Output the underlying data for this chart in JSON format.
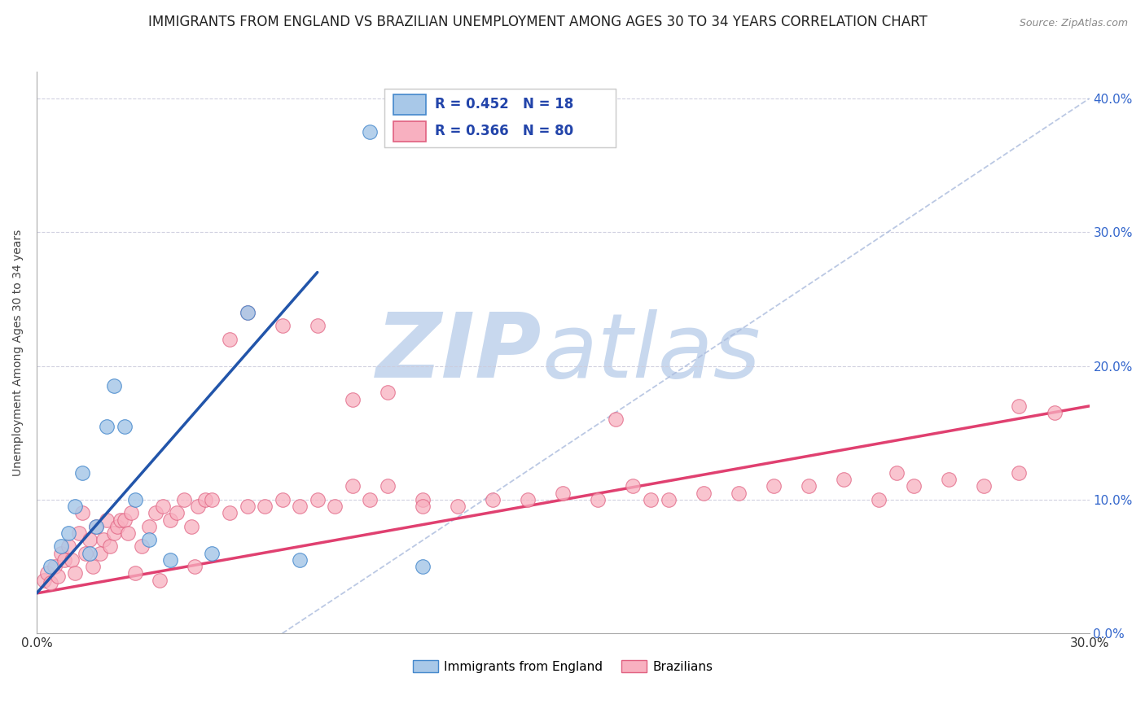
{
  "title": "IMMIGRANTS FROM ENGLAND VS BRAZILIAN UNEMPLOYMENT AMONG AGES 30 TO 34 YEARS CORRELATION CHART",
  "source": "Source: ZipAtlas.com",
  "ylabel": "Unemployment Among Ages 30 to 34 years",
  "xlim": [
    0.0,
    0.3
  ],
  "ylim": [
    0.0,
    0.42
  ],
  "xtick_labels": [
    "0.0%",
    "30.0%"
  ],
  "xtick_vals": [
    0.0,
    0.3
  ],
  "yticks_right": [
    0.0,
    0.1,
    0.2,
    0.3,
    0.4
  ],
  "blue_color": "#a8c8e8",
  "blue_edge_color": "#4488cc",
  "blue_line_color": "#2255aa",
  "pink_color": "#f8b0c0",
  "pink_edge_color": "#e06080",
  "pink_line_color": "#e04070",
  "legend_R_blue": "R = 0.452",
  "legend_N_blue": "N = 18",
  "legend_R_pink": "R = 0.366",
  "legend_N_pink": "N = 80",
  "watermark_zip": "ZIP",
  "watermark_atlas": "atlas",
  "watermark_color_zip": "#c8d8ee",
  "watermark_color_atlas": "#c8d8ee",
  "diag_color": "#aabbdd",
  "grid_color": "#ccccdd",
  "bg_color": "#ffffff",
  "title_fontsize": 12,
  "axis_label_fontsize": 10,
  "blue_scatter_x": [
    0.004,
    0.007,
    0.009,
    0.011,
    0.013,
    0.015,
    0.017,
    0.02,
    0.022,
    0.025,
    0.028,
    0.032,
    0.038,
    0.05,
    0.06,
    0.075,
    0.095,
    0.11
  ],
  "blue_scatter_y": [
    0.05,
    0.065,
    0.075,
    0.095,
    0.12,
    0.06,
    0.08,
    0.155,
    0.185,
    0.155,
    0.1,
    0.07,
    0.055,
    0.06,
    0.24,
    0.055,
    0.375,
    0.05
  ],
  "pink_scatter_x": [
    0.002,
    0.003,
    0.004,
    0.005,
    0.006,
    0.007,
    0.008,
    0.009,
    0.01,
    0.011,
    0.012,
    0.013,
    0.014,
    0.015,
    0.016,
    0.017,
    0.018,
    0.019,
    0.02,
    0.021,
    0.022,
    0.023,
    0.024,
    0.025,
    0.026,
    0.027,
    0.028,
    0.03,
    0.032,
    0.034,
    0.036,
    0.038,
    0.04,
    0.042,
    0.044,
    0.046,
    0.048,
    0.05,
    0.055,
    0.06,
    0.065,
    0.07,
    0.075,
    0.08,
    0.085,
    0.09,
    0.095,
    0.1,
    0.11,
    0.12,
    0.13,
    0.14,
    0.15,
    0.16,
    0.17,
    0.175,
    0.18,
    0.19,
    0.2,
    0.21,
    0.22,
    0.23,
    0.24,
    0.245,
    0.25,
    0.26,
    0.27,
    0.28,
    0.29,
    0.035,
    0.045,
    0.055,
    0.06,
    0.07,
    0.08,
    0.09,
    0.1,
    0.11,
    0.165,
    0.28
  ],
  "pink_scatter_y": [
    0.04,
    0.045,
    0.038,
    0.05,
    0.043,
    0.06,
    0.055,
    0.065,
    0.055,
    0.045,
    0.075,
    0.09,
    0.06,
    0.07,
    0.05,
    0.08,
    0.06,
    0.07,
    0.085,
    0.065,
    0.075,
    0.08,
    0.085,
    0.085,
    0.075,
    0.09,
    0.045,
    0.065,
    0.08,
    0.09,
    0.095,
    0.085,
    0.09,
    0.1,
    0.08,
    0.095,
    0.1,
    0.1,
    0.09,
    0.095,
    0.095,
    0.1,
    0.095,
    0.1,
    0.095,
    0.11,
    0.1,
    0.11,
    0.1,
    0.095,
    0.1,
    0.1,
    0.105,
    0.1,
    0.11,
    0.1,
    0.1,
    0.105,
    0.105,
    0.11,
    0.11,
    0.115,
    0.1,
    0.12,
    0.11,
    0.115,
    0.11,
    0.12,
    0.165,
    0.04,
    0.05,
    0.22,
    0.24,
    0.23,
    0.23,
    0.175,
    0.18,
    0.095,
    0.16,
    0.17
  ],
  "blue_line_x": [
    0.0,
    0.08
  ],
  "blue_line_y": [
    0.03,
    0.27
  ],
  "pink_line_x": [
    0.0,
    0.3
  ],
  "pink_line_y": [
    0.03,
    0.17
  ],
  "diag_line_x": [
    0.07,
    0.3
  ],
  "diag_line_y": [
    0.0,
    0.4
  ]
}
